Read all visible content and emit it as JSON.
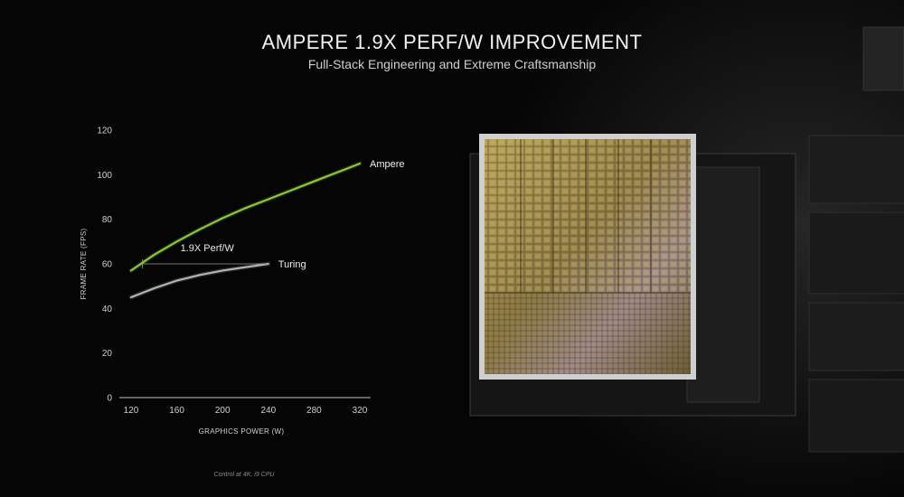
{
  "header": {
    "title": "AMPERE 1.9X PERF/W IMPROVEMENT",
    "subtitle": "Full-Stack Engineering and Extreme Craftsmanship"
  },
  "footnote": "Control at 4K, i9 CPU",
  "colors": {
    "ampere": "#8cc63f",
    "turing": "#b4b4b4",
    "background": "#050505"
  },
  "chart_data": {
    "type": "line",
    "xlabel": "GRAPHICS POWER (W)",
    "ylabel": "FRAME RATE (FPS)",
    "xlim": [
      110,
      330
    ],
    "ylim": [
      0,
      120
    ],
    "x_ticks": [
      120,
      160,
      200,
      240,
      280,
      320
    ],
    "y_ticks": [
      0,
      20,
      40,
      60,
      80,
      100,
      120
    ],
    "grid": false,
    "series": [
      {
        "name": "Ampere",
        "x": [
          120,
          140,
          160,
          180,
          200,
          220,
          240,
          260,
          280,
          300,
          320
        ],
        "y": [
          57,
          64,
          70,
          75.5,
          80.5,
          85,
          89,
          93,
          97,
          101,
          105
        ]
      },
      {
        "name": "Turing",
        "x": [
          120,
          140,
          160,
          180,
          200,
          220,
          240
        ],
        "y": [
          45,
          49,
          52.5,
          55,
          57,
          58.5,
          60
        ]
      }
    ],
    "annotations": [
      {
        "label": "1.9X Perf/W",
        "y": 60,
        "x_start": 130,
        "x_end": 240
      }
    ]
  }
}
